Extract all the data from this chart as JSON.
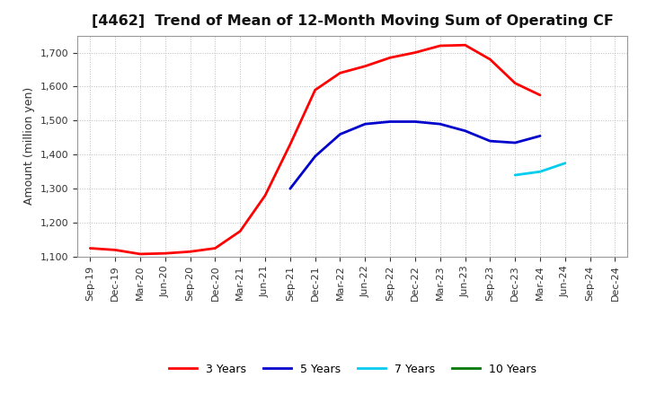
{
  "title": "[4462]  Trend of Mean of 12-Month Moving Sum of Operating CF",
  "ylabel": "Amount (million yen)",
  "ylim": [
    1100,
    1750
  ],
  "yticks": [
    1100,
    1200,
    1300,
    1400,
    1500,
    1600,
    1700
  ],
  "background_color": "#ffffff",
  "grid_color": "#bbbbbb",
  "series": {
    "3years": {
      "color": "#ff0000",
      "label": "3 Years",
      "x": [
        "Sep-19",
        "Dec-19",
        "Mar-20",
        "Jun-20",
        "Sep-20",
        "Dec-20",
        "Mar-21",
        "Jun-21",
        "Sep-21",
        "Dec-21",
        "Mar-22",
        "Jun-22",
        "Sep-22",
        "Dec-22",
        "Mar-23",
        "Jun-23",
        "Sep-23",
        "Dec-23",
        "Mar-24"
      ],
      "y": [
        1125,
        1120,
        1108,
        1110,
        1115,
        1125,
        1175,
        1280,
        1430,
        1590,
        1640,
        1660,
        1685,
        1700,
        1720,
        1722,
        1680,
        1610,
        1575
      ]
    },
    "5years": {
      "color": "#0000cc",
      "label": "5 Years",
      "x": [
        "Sep-21",
        "Dec-21",
        "Mar-22",
        "Jun-22",
        "Sep-22",
        "Dec-22",
        "Mar-23",
        "Jun-23",
        "Sep-23",
        "Dec-23",
        "Mar-24"
      ],
      "y": [
        1300,
        1395,
        1460,
        1490,
        1497,
        1497,
        1490,
        1470,
        1440,
        1435,
        1455
      ]
    },
    "7years": {
      "color": "#00ccee",
      "label": "7 Years",
      "x": [
        "Dec-23",
        "Mar-24",
        "Jun-24"
      ],
      "y": [
        1340,
        1350,
        1375
      ]
    },
    "10years": {
      "color": "#007700",
      "label": "10 Years",
      "x": [],
      "y": []
    }
  },
  "xtick_labels": [
    "Sep-19",
    "Dec-19",
    "Mar-20",
    "Jun-20",
    "Sep-20",
    "Dec-20",
    "Mar-21",
    "Jun-21",
    "Sep-21",
    "Dec-21",
    "Mar-22",
    "Jun-22",
    "Sep-22",
    "Dec-22",
    "Mar-23",
    "Jun-23",
    "Sep-23",
    "Dec-23",
    "Mar-24",
    "Jun-24",
    "Sep-24",
    "Dec-24"
  ],
  "title_fontsize": 11.5,
  "axis_label_fontsize": 9,
  "tick_fontsize": 8
}
